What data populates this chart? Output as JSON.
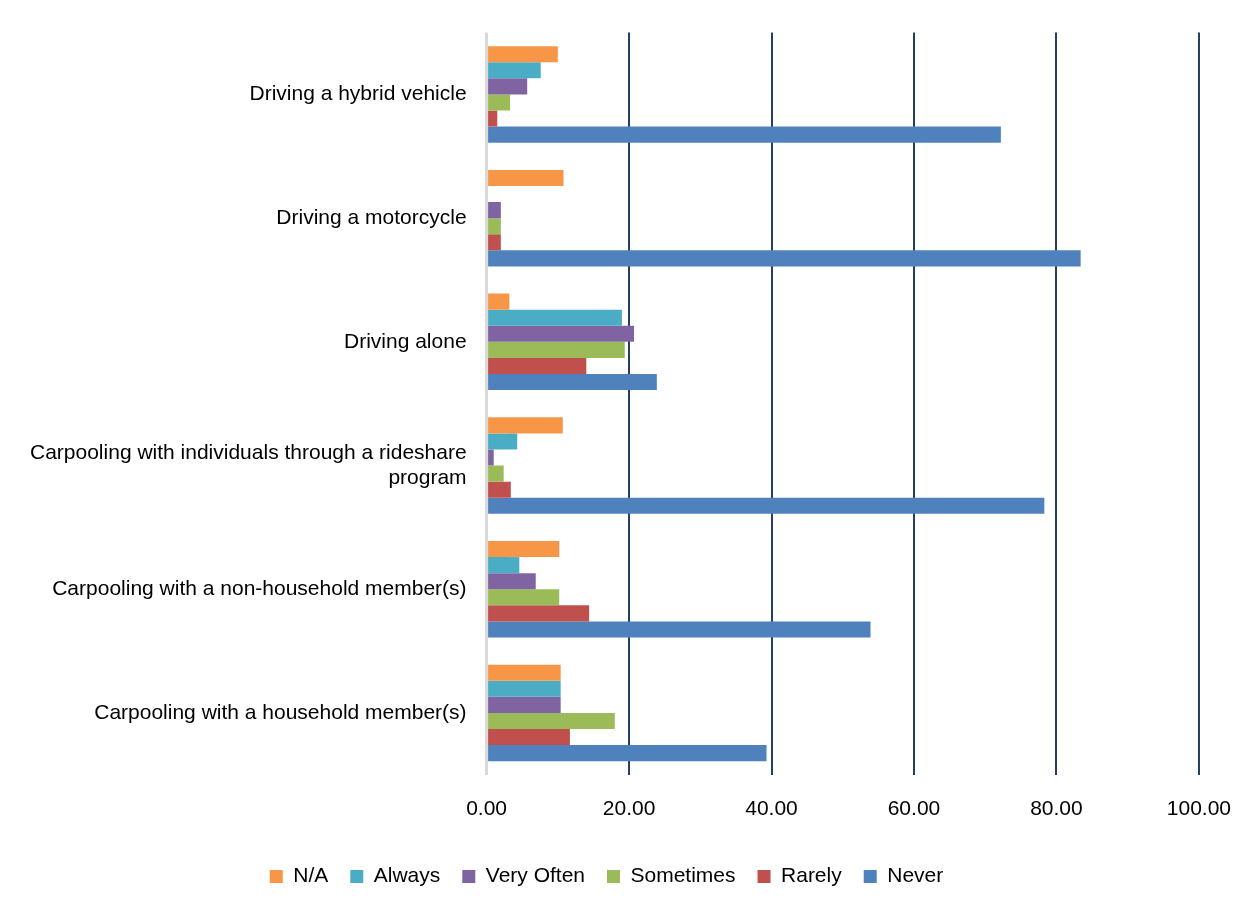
{
  "chart_data": {
    "type": "bar",
    "orientation": "horizontal",
    "categories": [
      "Driving a hybrid vehicle",
      "Driving a motorcycle",
      "Driving alone",
      "Carpooling with individuals through a rideshare program",
      "Carpooling with a non-household member(s)",
      "Carpooling with a household member(s)"
    ],
    "series": [
      {
        "name": "N/A",
        "color": "#f79646",
        "values": [
          10.0,
          10.8,
          3.2,
          10.7,
          10.2,
          10.4
        ]
      },
      {
        "name": "Always",
        "color": "#4bacc6",
        "values": [
          7.6,
          0,
          19.0,
          4.3,
          4.6,
          10.4
        ]
      },
      {
        "name": "Very Often",
        "color": "#8064a2",
        "values": [
          5.7,
          2.0,
          20.7,
          1.0,
          6.9,
          10.4
        ]
      },
      {
        "name": "Sometimes",
        "color": "#9bbb59",
        "values": [
          3.3,
          2.0,
          19.4,
          2.4,
          10.2,
          18.0
        ]
      },
      {
        "name": "Rarely",
        "color": "#c0504d",
        "values": [
          1.5,
          2.0,
          14.0,
          3.4,
          14.4,
          11.7
        ]
      },
      {
        "name": "Never",
        "color": "#4f81bd",
        "values": [
          72.2,
          83.4,
          23.9,
          78.3,
          53.9,
          39.3
        ]
      }
    ],
    "xlim": [
      0,
      100
    ],
    "xticks": [
      {
        "value": 0,
        "label": "0.00"
      },
      {
        "value": 20,
        "label": "20.00"
      },
      {
        "value": 40,
        "label": "40.00"
      },
      {
        "value": 60,
        "label": "60.00"
      },
      {
        "value": 80,
        "label": "80.00"
      },
      {
        "value": 100,
        "label": "100.00"
      }
    ],
    "grid": "x",
    "legend": "bottom"
  }
}
